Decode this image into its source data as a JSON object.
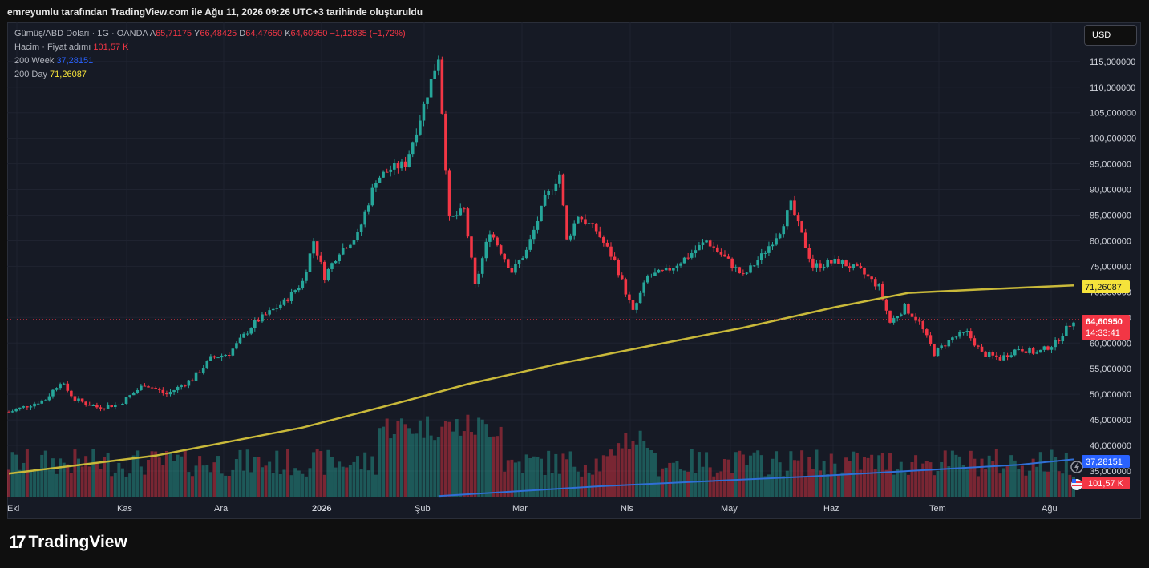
{
  "header": {
    "attribution": "emreyumlu tarafından TradingView.com ile Ağu 11, 2026 09:26 UTC+3 tarihinde oluşturuldu"
  },
  "legend": {
    "symbol": "Gümüş/ABD Doları · 1G · OANDA",
    "open_label": "A",
    "open": "65,71175",
    "high_label": "Y",
    "high": "66,48425",
    "low_label": "D",
    "low": "64,47650",
    "close_label": "K",
    "close": "64,60950",
    "change": "−1,12835 (−1,72%)",
    "volume_label": "Hacim · Fiyat adımı",
    "volume": "101,57 K",
    "ma_week_label": "200 Week",
    "ma_week": "37,28151",
    "ma_day_label": "200 Day",
    "ma_day": "71,26087"
  },
  "currency_button": "USD",
  "price_labels": {
    "ma_day": "71,26087",
    "last_price": "64,60950",
    "countdown": "14:33:41",
    "ma_week": "37,28151",
    "volume": "101,57 K"
  },
  "branding": {
    "logo_mark": "17",
    "name": "TradingView"
  },
  "colors": {
    "up": "#26a69a",
    "down": "#f23645",
    "ma_day": "#c9b93a",
    "ma_week": "#2962ff",
    "background": "#161a25"
  },
  "chart_data": {
    "type": "candlestick",
    "title": "Gümüş/ABD Doları · 1G · OANDA",
    "ylim": [
      30,
      121
    ],
    "y_ticks": [
      "35,000000",
      "40,000000",
      "45,000000",
      "50,000000",
      "55,000000",
      "60,000000",
      "65,000000",
      "70,000000",
      "75,000000",
      "80,000000",
      "85,000000",
      "90,000000",
      "95,000000",
      "100,000000",
      "105,000000",
      "110,000000",
      "115,000000"
    ],
    "x_ticks": [
      "Eki",
      "Kas",
      "Ara",
      "2026",
      "Şub",
      "Mar",
      "Nis",
      "May",
      "Haz",
      "Tem",
      "Ağu"
    ],
    "price_path": [
      {
        "t": 0,
        "p": 46.5
      },
      {
        "t": 10,
        "p": 49
      },
      {
        "t": 14,
        "p": 52.5
      },
      {
        "t": 18,
        "p": 49
      },
      {
        "t": 24,
        "p": 47.5
      },
      {
        "t": 30,
        "p": 48
      },
      {
        "t": 37,
        "p": 52
      },
      {
        "t": 43,
        "p": 50
      },
      {
        "t": 50,
        "p": 53
      },
      {
        "t": 55,
        "p": 57
      },
      {
        "t": 60,
        "p": 58
      },
      {
        "t": 67,
        "p": 64
      },
      {
        "t": 75,
        "p": 68
      },
      {
        "t": 80,
        "p": 72
      },
      {
        "t": 83,
        "p": 80
      },
      {
        "t": 86,
        "p": 73
      },
      {
        "t": 90,
        "p": 78
      },
      {
        "t": 95,
        "p": 81
      },
      {
        "t": 100,
        "p": 92
      },
      {
        "t": 104,
        "p": 94
      },
      {
        "t": 108,
        "p": 95
      },
      {
        "t": 112,
        "p": 104
      },
      {
        "t": 117,
        "p": 116
      },
      {
        "t": 120,
        "p": 84
      },
      {
        "t": 124,
        "p": 86
      },
      {
        "t": 127,
        "p": 71
      },
      {
        "t": 131,
        "p": 82
      },
      {
        "t": 134,
        "p": 78
      },
      {
        "t": 137,
        "p": 74
      },
      {
        "t": 141,
        "p": 78
      },
      {
        "t": 146,
        "p": 88
      },
      {
        "t": 150,
        "p": 93
      },
      {
        "t": 152,
        "p": 80
      },
      {
        "t": 155,
        "p": 85
      },
      {
        "t": 160,
        "p": 82
      },
      {
        "t": 165,
        "p": 76
      },
      {
        "t": 170,
        "p": 66
      },
      {
        "t": 174,
        "p": 73
      },
      {
        "t": 179,
        "p": 74
      },
      {
        "t": 185,
        "p": 77
      },
      {
        "t": 190,
        "p": 80
      },
      {
        "t": 196,
        "p": 76
      },
      {
        "t": 200,
        "p": 73
      },
      {
        "t": 205,
        "p": 77
      },
      {
        "t": 210,
        "p": 82
      },
      {
        "t": 213,
        "p": 87
      },
      {
        "t": 216,
        "p": 81
      },
      {
        "t": 219,
        "p": 75
      },
      {
        "t": 226,
        "p": 76
      },
      {
        "t": 232,
        "p": 74
      },
      {
        "t": 237,
        "p": 71
      },
      {
        "t": 240,
        "p": 64
      },
      {
        "t": 244,
        "p": 67
      },
      {
        "t": 248,
        "p": 64
      },
      {
        "t": 252,
        "p": 58
      },
      {
        "t": 257,
        "p": 61
      },
      {
        "t": 261,
        "p": 62
      },
      {
        "t": 265,
        "p": 58
      },
      {
        "t": 270,
        "p": 57
      },
      {
        "t": 275,
        "p": 59
      },
      {
        "t": 280,
        "p": 58
      },
      {
        "t": 285,
        "p": 60
      },
      {
        "t": 290,
        "p": 64.6
      }
    ],
    "ma_200_day": [
      {
        "t": 0,
        "p": 34.5
      },
      {
        "t": 40,
        "p": 38
      },
      {
        "t": 80,
        "p": 43.5
      },
      {
        "t": 107,
        "p": 48.5
      },
      {
        "t": 125,
        "p": 52
      },
      {
        "t": 150,
        "p": 56
      },
      {
        "t": 175,
        "p": 59.5
      },
      {
        "t": 200,
        "p": 63
      },
      {
        "t": 225,
        "p": 67
      },
      {
        "t": 245,
        "p": 69.8
      },
      {
        "t": 265,
        "p": 70.5
      },
      {
        "t": 290,
        "p": 71.26
      }
    ],
    "ma_200_week": [
      {
        "t": 117,
        "p": 30.1
      },
      {
        "t": 135,
        "p": 30.9
      },
      {
        "t": 160,
        "p": 32
      },
      {
        "t": 190,
        "p": 33
      },
      {
        "t": 220,
        "p": 34
      },
      {
        "t": 250,
        "p": 35.2
      },
      {
        "t": 275,
        "p": 36.2
      },
      {
        "t": 290,
        "p": 37.28
      }
    ]
  }
}
